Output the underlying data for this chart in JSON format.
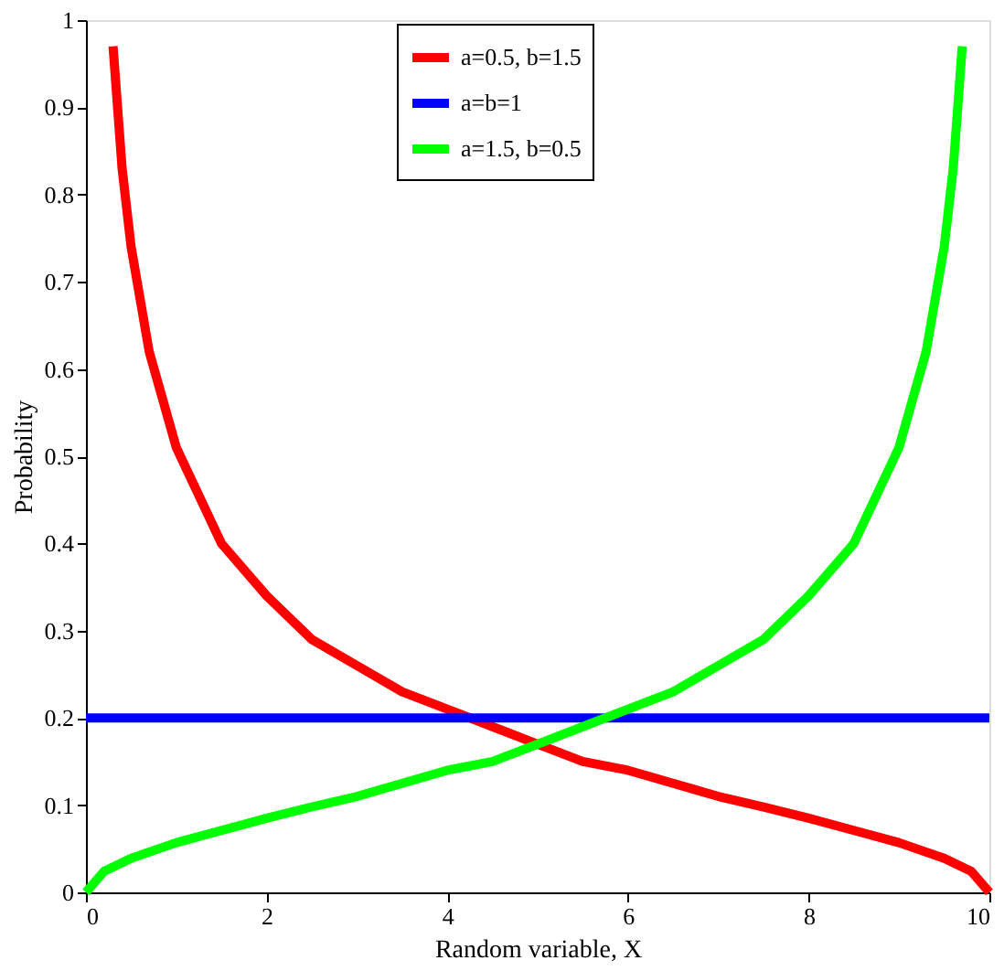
{
  "chart_data": {
    "type": "line",
    "xlabel": "Random variable, X",
    "ylabel": "Probability",
    "xlim": [
      0,
      10
    ],
    "ylim": [
      0,
      1
    ],
    "xticks": [
      0,
      2,
      4,
      6,
      8,
      10
    ],
    "yticks": [
      0,
      0.1,
      0.2,
      0.3,
      0.4,
      0.5,
      0.6,
      0.7,
      0.8,
      0.9,
      1
    ],
    "grid": false,
    "legend": "top right",
    "marker": "none",
    "line_style": "solid",
    "series": [
      {
        "name": "a=0.5, b=1.5",
        "color": "#ff0000",
        "x": [
          0.3,
          0.4,
          0.5,
          0.7,
          1,
          1.5,
          2,
          2.5,
          3,
          3.5,
          4,
          4.5,
          5,
          5.5,
          6,
          6.5,
          7,
          7.5,
          8,
          8.5,
          9,
          9.5,
          9.8,
          10
        ],
        "values": [
          0.97,
          0.83,
          0.74,
          0.62,
          0.51,
          0.4,
          0.34,
          0.29,
          0.26,
          0.23,
          0.21,
          0.19,
          0.17,
          0.15,
          0.14,
          0.125,
          0.11,
          0.098,
          0.085,
          0.071,
          0.057,
          0.039,
          0.024,
          0
        ]
      },
      {
        "name": "a=b=1",
        "color": "#0000ff",
        "x": [
          0,
          10
        ],
        "values": [
          0.2,
          0.2
        ]
      },
      {
        "name": "a=1.5, b=0.5",
        "color": "#00ff00",
        "x": [
          0,
          0.2,
          0.5,
          1,
          1.5,
          2,
          2.5,
          3,
          3.5,
          4,
          4.5,
          5,
          5.5,
          6,
          6.5,
          7,
          7.5,
          8,
          8.5,
          9,
          9.3,
          9.5,
          9.6,
          9.7
        ],
        "values": [
          0,
          0.024,
          0.039,
          0.057,
          0.071,
          0.085,
          0.098,
          0.11,
          0.125,
          0.14,
          0.15,
          0.17,
          0.19,
          0.21,
          0.23,
          0.26,
          0.29,
          0.34,
          0.4,
          0.51,
          0.62,
          0.74,
          0.83,
          0.97
        ]
      }
    ]
  }
}
